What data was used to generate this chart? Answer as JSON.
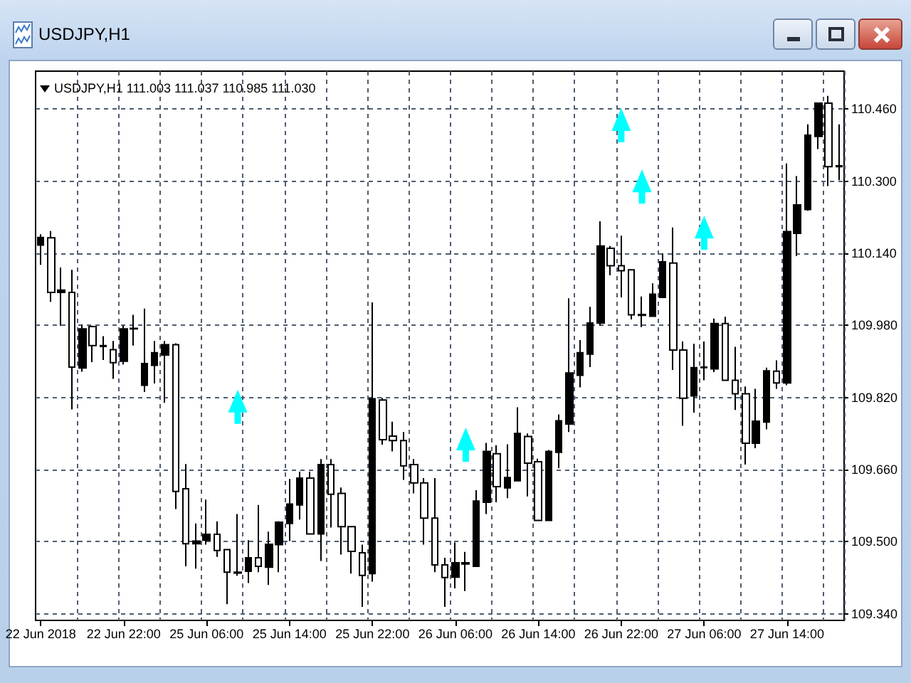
{
  "chart_data": {
    "type": "candlestick",
    "title": "USDJPY,H1",
    "subtitle": "USDJPY,H1 111.003 111.037 110.985 111.030",
    "categories": [
      "22 Jun 2018",
      null,
      null,
      null,
      null,
      null,
      null,
      null,
      "22 Jun 22:00",
      null,
      null,
      null,
      null,
      null,
      null,
      null,
      "25 Jun 06:00",
      null,
      null,
      null,
      null,
      null,
      null,
      null,
      "25 Jun 14:00",
      null,
      null,
      null,
      null,
      null,
      null,
      null,
      "25 Jun 22:00",
      null,
      null,
      null,
      null,
      null,
      null,
      null,
      "26 Jun 06:00",
      null,
      null,
      null,
      null,
      null,
      null,
      null,
      "26 Jun 14:00",
      null,
      null,
      null,
      null,
      null,
      null,
      null,
      "26 Jun 22:00",
      null,
      null,
      null,
      null,
      null,
      null,
      null,
      "27 Jun 06:00",
      null,
      null,
      null,
      null,
      null,
      null,
      null,
      "27 Jun 14:00",
      null,
      null,
      null,
      null,
      null
    ],
    "color": "#000000",
    "ohlc": [
      [
        110.158,
        110.182,
        110.114,
        110.175
      ],
      [
        110.174,
        110.189,
        110.032,
        110.053
      ],
      [
        110.053,
        110.108,
        109.979,
        110.058
      ],
      [
        110.053,
        110.103,
        109.793,
        109.887
      ],
      [
        109.885,
        109.982,
        109.877,
        109.972
      ],
      [
        109.977,
        109.979,
        109.898,
        109.935
      ],
      [
        109.935,
        109.956,
        109.903,
        109.933
      ],
      [
        109.926,
        109.945,
        109.861,
        109.897
      ],
      [
        109.9,
        109.979,
        109.893,
        109.972
      ],
      [
        109.972,
        110.003,
        109.935,
        109.973
      ],
      [
        109.847,
        110.017,
        109.832,
        109.895
      ],
      [
        109.891,
        109.945,
        109.851,
        109.919
      ],
      [
        109.914,
        109.945,
        109.808,
        109.937
      ],
      [
        109.937,
        109.94,
        109.572,
        109.611
      ],
      [
        109.617,
        109.672,
        109.445,
        109.495
      ],
      [
        109.495,
        109.54,
        109.44,
        109.501
      ],
      [
        109.503,
        109.593,
        109.493,
        109.516
      ],
      [
        109.516,
        109.545,
        109.466,
        109.48
      ],
      [
        109.482,
        109.482,
        109.361,
        109.432
      ],
      [
        109.432,
        109.561,
        109.424,
        109.43
      ],
      [
        109.434,
        109.503,
        109.408,
        109.464
      ],
      [
        109.464,
        109.581,
        109.432,
        109.445
      ],
      [
        109.443,
        109.522,
        109.404,
        109.494
      ],
      [
        109.493,
        109.545,
        109.432,
        109.543
      ],
      [
        109.54,
        109.639,
        109.501,
        109.583
      ],
      [
        109.581,
        109.655,
        109.549,
        109.641
      ],
      [
        109.641,
        109.655,
        109.517,
        109.517
      ],
      [
        109.517,
        109.683,
        109.457,
        109.671
      ],
      [
        109.671,
        109.683,
        109.531,
        109.605
      ],
      [
        109.607,
        109.62,
        109.471,
        109.533
      ],
      [
        109.533,
        109.533,
        109.429,
        109.478
      ],
      [
        109.475,
        109.493,
        109.355,
        109.425
      ],
      [
        109.429,
        110.031,
        109.411,
        109.817
      ],
      [
        109.814,
        109.819,
        109.715,
        109.726
      ],
      [
        109.734,
        109.766,
        109.7,
        109.724
      ],
      [
        109.724,
        109.743,
        109.637,
        109.668
      ],
      [
        109.671,
        109.683,
        109.607,
        109.63
      ],
      [
        109.63,
        109.641,
        109.493,
        109.552
      ],
      [
        109.552,
        109.641,
        109.432,
        109.448
      ],
      [
        109.448,
        109.464,
        109.355,
        109.42
      ],
      [
        109.421,
        109.498,
        109.396,
        109.453
      ],
      [
        109.453,
        109.477,
        109.39,
        109.45
      ],
      [
        109.445,
        109.614,
        109.445,
        109.59
      ],
      [
        109.587,
        109.719,
        109.561,
        109.7
      ],
      [
        109.695,
        109.714,
        109.587,
        109.622
      ],
      [
        109.619,
        109.716,
        109.596,
        109.642
      ],
      [
        109.635,
        109.798,
        109.635,
        109.74
      ],
      [
        109.733,
        109.74,
        109.6,
        109.674
      ],
      [
        109.677,
        109.684,
        109.547,
        109.547
      ],
      [
        109.547,
        109.703,
        109.547,
        109.7
      ],
      [
        109.698,
        109.782,
        109.663,
        109.768
      ],
      [
        109.761,
        110.04,
        109.743,
        109.874
      ],
      [
        109.869,
        109.947,
        109.842,
        109.919
      ],
      [
        109.916,
        110.021,
        109.887,
        109.985
      ],
      [
        109.985,
        110.211,
        109.979,
        110.156
      ],
      [
        110.151,
        110.156,
        110.091,
        110.112
      ],
      [
        110.112,
        110.179,
        110.042,
        110.101
      ],
      [
        110.103,
        110.103,
        109.993,
        110.003
      ],
      [
        110.002,
        110.044,
        109.976,
        110.004
      ],
      [
        110.0,
        110.073,
        110.0,
        110.049
      ],
      [
        110.042,
        110.139,
        110.042,
        110.121
      ],
      [
        110.118,
        110.197,
        109.881,
        109.925
      ],
      [
        109.925,
        109.944,
        109.757,
        109.818
      ],
      [
        109.823,
        109.939,
        109.786,
        109.886
      ],
      [
        109.886,
        109.944,
        109.858,
        109.887
      ],
      [
        109.883,
        109.995,
        109.876,
        109.984
      ],
      [
        109.984,
        109.999,
        109.858,
        109.858
      ],
      [
        109.858,
        109.932,
        109.792,
        109.828
      ],
      [
        109.828,
        109.844,
        109.671,
        109.718
      ],
      [
        109.718,
        109.839,
        109.707,
        109.767
      ],
      [
        109.765,
        109.886,
        109.749,
        109.879
      ],
      [
        109.878,
        109.902,
        109.839,
        109.852
      ],
      [
        109.852,
        110.339,
        109.847,
        110.188
      ],
      [
        110.184,
        110.311,
        110.134,
        110.247
      ],
      [
        110.237,
        110.426,
        110.234,
        110.402
      ],
      [
        110.399,
        110.473,
        110.371,
        110.473
      ],
      [
        110.473,
        110.489,
        110.289,
        110.332
      ],
      [
        110.332,
        110.426,
        110.302,
        110.334
      ]
    ],
    "series": [
      {
        "type": "scatter",
        "color": "#00ffff",
        "marker": "triangle",
        "values": [
          null,
          null,
          null,
          null,
          null,
          null,
          null,
          null,
          null,
          null,
          null,
          null,
          null,
          null,
          null,
          null,
          null,
          null,
          null,
          109.799,
          null,
          null,
          null,
          null,
          null,
          null,
          null,
          null,
          null,
          null,
          null,
          null,
          null,
          null,
          null,
          null,
          null,
          null,
          null,
          null,
          null,
          109.715,
          null,
          null,
          null,
          null,
          null,
          null,
          null,
          null,
          null,
          null,
          null,
          null,
          null,
          null,
          110.424,
          null,
          110.288,
          null,
          null,
          null,
          null,
          null,
          110.185,
          null,
          null,
          null,
          null,
          null,
          null,
          null,
          null,
          null,
          null,
          null,
          null,
          null
        ]
      }
    ],
    "ylim": [
      109.325,
      110.544
    ],
    "yticks": [
      {
        "value": 109.34,
        "label": "109.340"
      },
      {
        "value": 109.5,
        "label": "109.500"
      },
      {
        "value": 109.66,
        "label": "109.660"
      },
      {
        "value": 109.82,
        "label": "109.820"
      },
      {
        "value": 109.98,
        "label": "109.980"
      },
      {
        "value": 110.14,
        "label": "110.140"
      },
      {
        "value": 110.3,
        "label": "110.300"
      },
      {
        "value": 110.46,
        "label": "110.460"
      }
    ],
    "grid": true
  }
}
